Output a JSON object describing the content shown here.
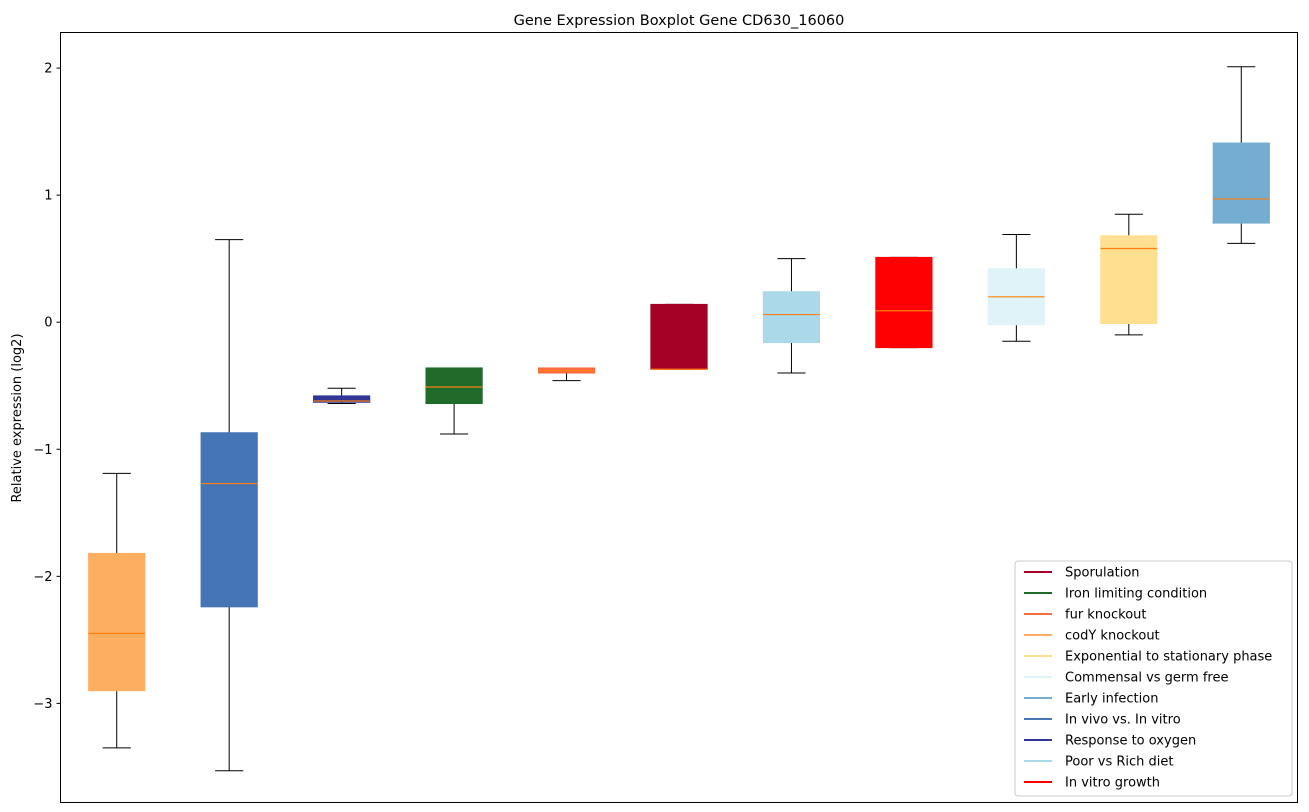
{
  "chart_data": {
    "type": "boxplot",
    "title": "Gene Expression Boxplot Gene CD630_16060",
    "xlabel": "",
    "ylabel": "Relative expression (log2)",
    "ylim": [
      -3.78,
      2.28
    ],
    "yticks": [
      {
        "value": 2,
        "label": "2"
      },
      {
        "value": 1,
        "label": "1"
      },
      {
        "value": 0,
        "label": "0"
      },
      {
        "value": -1,
        "label": "−1"
      },
      {
        "value": -2,
        "label": "−2"
      },
      {
        "value": -3,
        "label": "−3"
      }
    ],
    "grid": false,
    "legend_position": "lower-right",
    "median_color": "#ff7f0e",
    "boxes": [
      {
        "series": "codY knockout",
        "color": "#fdae61",
        "whislo": -3.35,
        "q1": -2.9,
        "med": -2.45,
        "q3": -1.82,
        "whishi": -1.19
      },
      {
        "series": "In vivo vs. In vitro",
        "color": "#4575b4",
        "whislo": -3.53,
        "q1": -2.24,
        "med": -1.27,
        "q3": -0.87,
        "whishi": 0.65
      },
      {
        "series": "Response to oxygen",
        "color": "#313695",
        "whislo": -0.64,
        "q1": -0.63,
        "med": -0.62,
        "q3": -0.58,
        "whishi": -0.52
      },
      {
        "series": "Iron limiting condition",
        "color": "#1e6b2a",
        "whislo": -0.88,
        "q1": -0.64,
        "med": -0.51,
        "q3": -0.36,
        "whishi": -0.36
      },
      {
        "series": "fur knockout",
        "color": "#f46d43",
        "whislo": -0.46,
        "q1": -0.4,
        "med": -0.38,
        "q3": -0.36,
        "whishi": -0.36
      },
      {
        "series": "Sporulation",
        "color": "#a50026",
        "whislo": -0.37,
        "q1": -0.37,
        "med": -0.37,
        "q3": 0.14,
        "whishi": 0.14
      },
      {
        "series": "Poor vs Rich diet",
        "color": "#abd9e9",
        "whislo": -0.4,
        "q1": -0.16,
        "med": 0.06,
        "q3": 0.24,
        "whishi": 0.5
      },
      {
        "series": "In vitro growth",
        "color": "#ff0000",
        "whislo": -0.2,
        "q1": -0.2,
        "med": 0.09,
        "q3": 0.51,
        "whishi": 0.51
      },
      {
        "series": "Commensal vs germ free",
        "color": "#e0f3f8",
        "whislo": -0.15,
        "q1": -0.02,
        "med": 0.2,
        "q3": 0.42,
        "whishi": 0.69
      },
      {
        "series": "Exponential to stationary phase",
        "color": "#fee090",
        "whislo": -0.1,
        "q1": -0.01,
        "med": 0.58,
        "q3": 0.68,
        "whishi": 0.85
      },
      {
        "series": "Early infection",
        "color": "#74add1",
        "whislo": 0.62,
        "q1": 0.78,
        "med": 0.97,
        "q3": 1.41,
        "whishi": 2.01
      }
    ],
    "legend": [
      {
        "name": "Sporulation",
        "color": "#a50026"
      },
      {
        "name": "Iron limiting condition",
        "color": "#1e6b2a"
      },
      {
        "name": "fur knockout",
        "color": "#f46d43"
      },
      {
        "name": "codY knockout",
        "color": "#fdae61"
      },
      {
        "name": "Exponential to stationary phase",
        "color": "#fee090"
      },
      {
        "name": "Commensal vs germ free",
        "color": "#e0f3f8"
      },
      {
        "name": "Early infection",
        "color": "#74add1"
      },
      {
        "name": "In vivo vs. In vitro",
        "color": "#4575b4"
      },
      {
        "name": "Response to oxygen",
        "color": "#313695"
      },
      {
        "name": "Poor vs Rich diet",
        "color": "#abd9e9"
      },
      {
        "name": "In vitro growth",
        "color": "#ff0000"
      }
    ]
  }
}
